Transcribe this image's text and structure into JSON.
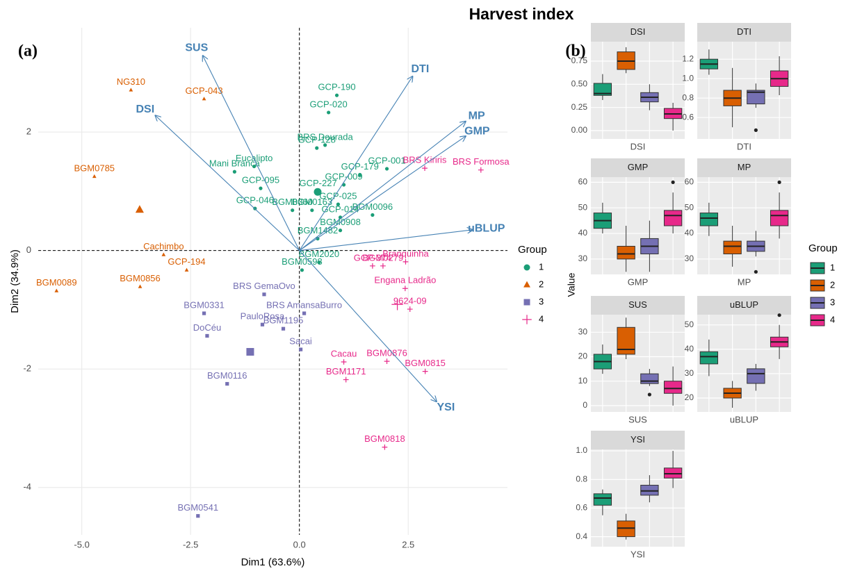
{
  "title": "Harvest index",
  "chart_data": [
    {
      "type": "biplot",
      "panel_label": "(a)",
      "x_label": "Dim1 (63.6%)",
      "y_label": "Dim2 (34.9%)",
      "xlim": [
        -6.0,
        4.78
      ],
      "ylim": [
        -4.8,
        3.76
      ],
      "xticks": [
        {
          "value": -5,
          "label": "-5.0"
        },
        -2.5,
        {
          "value": 0,
          "label": "0.0"
        },
        2.5
      ],
      "yticks": [
        -4,
        -2,
        0,
        2
      ],
      "grid": true,
      "legend_title": "Group",
      "series": [
        {
          "name": "1",
          "color": "#1B9E77",
          "shape": "circle",
          "labels": [
            "GCP-190",
            "GCP-020",
            "BRS Dourada",
            "GCP-128",
            "GCP-001",
            "GCP-179",
            "GCP-009",
            "Eucalipto",
            "Mani Branca",
            "GCP-095",
            "GCP-227",
            "GCP-025",
            "GCP-014",
            "BGM0163",
            "GCP-046",
            "BGM0360",
            "BGM0096",
            "BGM0908",
            "BGM1482",
            "BGM2020",
            "BGM0598"
          ],
          "x": [
            0.86,
            0.67,
            0.59,
            0.4,
            2.01,
            1.39,
            1.02,
            -1.04,
            -1.49,
            -0.89,
            0.43,
            0.89,
            0.94,
            0.29,
            -1.02,
            -0.16,
            1.68,
            0.94,
            0.42,
            0.45,
            0.06
          ],
          "y": [
            2.62,
            2.33,
            1.78,
            1.73,
            1.38,
            1.28,
            1.11,
            1.42,
            1.33,
            1.05,
            1.0,
            0.78,
            0.56,
            0.68,
            0.71,
            0.68,
            0.6,
            0.34,
            0.2,
            -0.2,
            -0.33
          ],
          "centroid": [
            0.42,
            0.99
          ]
        },
        {
          "name": "2",
          "color": "#D95F02",
          "shape": "triangle",
          "labels": [
            "NG310",
            "GCP-043",
            "BGM0785",
            "Cachimbo",
            "GCP-194",
            "BGM0089",
            "BGM0856"
          ],
          "x": [
            -3.87,
            -2.19,
            -4.71,
            -3.12,
            -2.59,
            -5.58,
            -3.66
          ],
          "y": [
            2.71,
            2.56,
            1.25,
            -0.07,
            -0.33,
            -0.68,
            -0.61
          ],
          "centroid": [
            -3.67,
            0.69
          ]
        },
        {
          "name": "3",
          "color": "#7570B3",
          "shape": "square",
          "labels": [
            "BRS GemaOvo",
            "BGM0331",
            "BRS AmansaBurro",
            "PauloRosa",
            "BGM1195",
            "DoCéu",
            "Sacai",
            "BGM0116",
            "BGM0541"
          ],
          "x": [
            -0.81,
            -2.19,
            0.11,
            -0.85,
            -0.37,
            -2.12,
            0.03,
            -1.66,
            -2.33
          ],
          "y": [
            -0.74,
            -1.06,
            -1.06,
            -1.25,
            -1.32,
            -1.44,
            -1.67,
            -2.25,
            -4.48
          ],
          "centroid": [
            -1.13,
            -1.71
          ]
        },
        {
          "name": "4",
          "color": "#E7298A",
          "shape": "plus",
          "labels": [
            "Branquinha",
            "BGM0279",
            "GCP-374",
            "BRS Kiriris",
            "BRS Formosa",
            "Engana Ladrão",
            "9624-09",
            "Cacau",
            "BGM0876",
            "BGM1171",
            "BGM0815",
            "BGM0818"
          ],
          "x": [
            2.44,
            1.92,
            1.68,
            2.88,
            4.17,
            2.43,
            2.54,
            1.02,
            2.01,
            1.07,
            2.89,
            1.96
          ],
          "y": [
            -0.19,
            -0.26,
            -0.26,
            1.39,
            1.36,
            -0.64,
            -0.99,
            -1.88,
            -1.87,
            -2.18,
            -2.04,
            -3.32
          ],
          "centroid": [
            2.25,
            -0.91
          ]
        }
      ],
      "arrows": {
        "color": "#4682B4",
        "labels": [
          "SUS",
          "DTI",
          "DSI",
          "MP",
          "GMP",
          "uBLUP",
          "YSI"
        ],
        "x": [
          -2.22,
          2.6,
          -3.31,
          3.82,
          3.82,
          3.98,
          3.15
        ],
        "y": [
          3.29,
          2.94,
          2.28,
          2.18,
          1.93,
          0.35,
          -2.55
        ]
      }
    },
    {
      "type": "boxplot",
      "panel_label": "(b)",
      "y_label": "Value",
      "legend_title": "Group",
      "groups": [
        "1",
        "2",
        "3",
        "4"
      ],
      "colors": [
        "#1B9E77",
        "#D95F02",
        "#7570B3",
        "#E7298A"
      ],
      "facets": [
        {
          "title": "DSI",
          "x_label": "DSI",
          "ylim": [
            -0.09,
            0.96
          ],
          "yticks": [
            {
              "value": 0,
              "label": "0.00"
            },
            0.25,
            {
              "value": 0.5,
              "label": "0.50"
            },
            0.75
          ],
          "boxes": [
            {
              "low": 0.33,
              "q1": 0.38,
              "median": 0.4,
              "q3": 0.51,
              "high": 0.61,
              "outliers": []
            },
            {
              "low": 0.62,
              "q1": 0.66,
              "median": 0.75,
              "q3": 0.85,
              "high": 0.9,
              "outliers": []
            },
            {
              "low": 0.22,
              "q1": 0.31,
              "median": 0.36,
              "q3": 0.41,
              "high": 0.5,
              "outliers": []
            },
            {
              "low": 0.0,
              "q1": 0.13,
              "median": 0.18,
              "q3": 0.24,
              "high": 0.3,
              "outliers": []
            }
          ]
        },
        {
          "title": "DTI",
          "x_label": "DTI",
          "ylim": [
            0.38,
            1.38
          ],
          "yticks": [
            0.6,
            0.8,
            {
              "value": 1,
              "label": "1.0"
            },
            1.2
          ],
          "boxes": [
            {
              "low": 1.04,
              "q1": 1.1,
              "median": 1.15,
              "q3": 1.2,
              "high": 1.3,
              "outliers": []
            },
            {
              "low": 0.5,
              "q1": 0.72,
              "median": 0.8,
              "q3": 0.88,
              "high": 1.11,
              "outliers": []
            },
            {
              "low": 0.7,
              "q1": 0.74,
              "median": 0.86,
              "q3": 0.88,
              "high": 0.95,
              "outliers": [
                0.47
              ]
            },
            {
              "low": 0.83,
              "q1": 0.92,
              "median": 1.0,
              "q3": 1.08,
              "high": 1.23,
              "outliers": []
            }
          ]
        },
        {
          "title": "GMP",
          "x_label": "GMP",
          "ylim": [
            24,
            62
          ],
          "yticks": [
            30,
            40,
            50,
            60
          ],
          "boxes": [
            {
              "low": 40,
              "q1": 42,
              "median": 45,
              "q3": 48,
              "high": 52,
              "outliers": []
            },
            {
              "low": 25,
              "q1": 30,
              "median": 32,
              "q3": 35,
              "high": 43,
              "outliers": []
            },
            {
              "low": 25,
              "q1": 32,
              "median": 35,
              "q3": 38,
              "high": 45,
              "outliers": []
            },
            {
              "low": 40,
              "q1": 43,
              "median": 47,
              "q3": 49,
              "high": 56,
              "outliers": [
                60
              ]
            }
          ]
        },
        {
          "title": "MP",
          "x_label": "MP",
          "ylim": [
            24,
            62
          ],
          "yticks": [
            30,
            40,
            50,
            60
          ],
          "boxes": [
            {
              "low": 39,
              "q1": 43,
              "median": 46,
              "q3": 48,
              "high": 52,
              "outliers": []
            },
            {
              "low": 27,
              "q1": 32,
              "median": 35,
              "q3": 37,
              "high": 43,
              "outliers": []
            },
            {
              "low": 31,
              "q1": 33,
              "median": 35,
              "q3": 37,
              "high": 41,
              "outliers": [
                25
              ]
            },
            {
              "low": 38,
              "q1": 43,
              "median": 47,
              "q3": 49,
              "high": 56,
              "outliers": [
                60
              ]
            }
          ]
        },
        {
          "title": "SUS",
          "x_label": "SUS",
          "ylim": [
            -2.6,
            37.2
          ],
          "yticks": [
            0,
            10,
            20,
            30
          ],
          "boxes": [
            {
              "low": 13,
              "q1": 15,
              "median": 18,
              "q3": 21,
              "high": 25,
              "outliers": []
            },
            {
              "low": 19,
              "q1": 21,
              "median": 23,
              "q3": 32,
              "high": 36,
              "outliers": []
            },
            {
              "low": 8,
              "q1": 9,
              "median": 10,
              "q3": 13,
              "high": 15,
              "outliers": [
                4.5
              ]
            },
            {
              "low": 0,
              "q1": 5,
              "median": 7,
              "q3": 10,
              "high": 16,
              "outliers": []
            }
          ]
        },
        {
          "title": "uBLUP",
          "x_label": "uBLUP",
          "ylim": [
            14.3,
            54.2
          ],
          "yticks": [
            20,
            30,
            40,
            50
          ],
          "boxes": [
            {
              "low": 29,
              "q1": 34,
              "median": 37,
              "q3": 39,
              "high": 44,
              "outliers": []
            },
            {
              "low": 16,
              "q1": 20,
              "median": 22,
              "q3": 24,
              "high": 27,
              "outliers": []
            },
            {
              "low": 23,
              "q1": 26,
              "median": 30,
              "q3": 32,
              "high": 34,
              "outliers": []
            },
            {
              "low": 36,
              "q1": 41,
              "median": 43,
              "q3": 45,
              "high": 50,
              "outliers": [
                54
              ]
            }
          ]
        },
        {
          "title": "YSI",
          "x_label": "YSI",
          "ylim": [
            0.33,
            1.01
          ],
          "yticks": [
            0.4,
            0.6,
            0.8,
            {
              "value": 1,
              "label": "1.0"
            }
          ],
          "boxes": [
            {
              "low": 0.55,
              "q1": 0.62,
              "median": 0.67,
              "q3": 0.7,
              "high": 0.73,
              "outliers": []
            },
            {
              "low": 0.38,
              "q1": 0.4,
              "median": 0.46,
              "q3": 0.51,
              "high": 0.56,
              "outliers": []
            },
            {
              "low": 0.64,
              "q1": 0.69,
              "median": 0.72,
              "q3": 0.76,
              "high": 0.83,
              "outliers": []
            },
            {
              "low": 0.74,
              "q1": 0.81,
              "median": 0.84,
              "q3": 0.88,
              "high": 1.0,
              "outliers": []
            }
          ]
        }
      ]
    }
  ]
}
